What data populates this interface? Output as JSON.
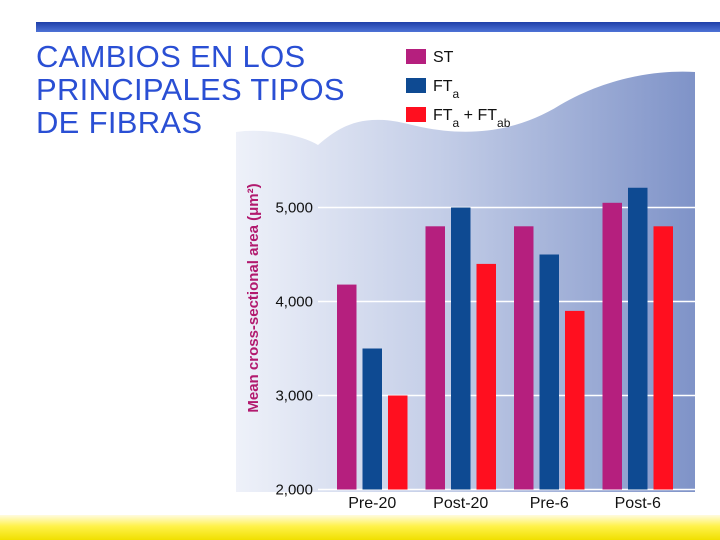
{
  "slide": {
    "title_lines": [
      "CAMBIOS EN LOS",
      "PRINCIPALES TIPOS",
      "DE FIBRAS"
    ]
  },
  "chart_data": {
    "type": "bar",
    "ylabel": "Mean cross-sectional area (μm²)",
    "ylim": [
      2000,
      5000
    ],
    "yticks": [
      "2,000",
      "3,000",
      "4,000",
      "5,000"
    ],
    "ytick_values": [
      2000,
      3000,
      4000,
      5000
    ],
    "categories": [
      "Pre-20",
      "Post-20",
      "Pre-6",
      "Post-6"
    ],
    "series": [
      {
        "name": "ST",
        "name_base": "ST",
        "name_sub": "",
        "color": "#b51f7e",
        "values": [
          4180,
          4800,
          4800,
          5050
        ]
      },
      {
        "name": "FTa",
        "name_base": "FT",
        "name_sub": "a",
        "color": "#0e4a92",
        "values": [
          3500,
          5000,
          4500,
          5210
        ]
      },
      {
        "name": "FTa + FTab",
        "name_base": "FT",
        "name_sub": "a",
        "name_extra": "+ FT",
        "name_sub2": "ab",
        "color": "#ff0f1f",
        "values": [
          3000,
          4400,
          3900,
          4800
        ]
      }
    ],
    "legend_position": "top",
    "grid": true
  }
}
